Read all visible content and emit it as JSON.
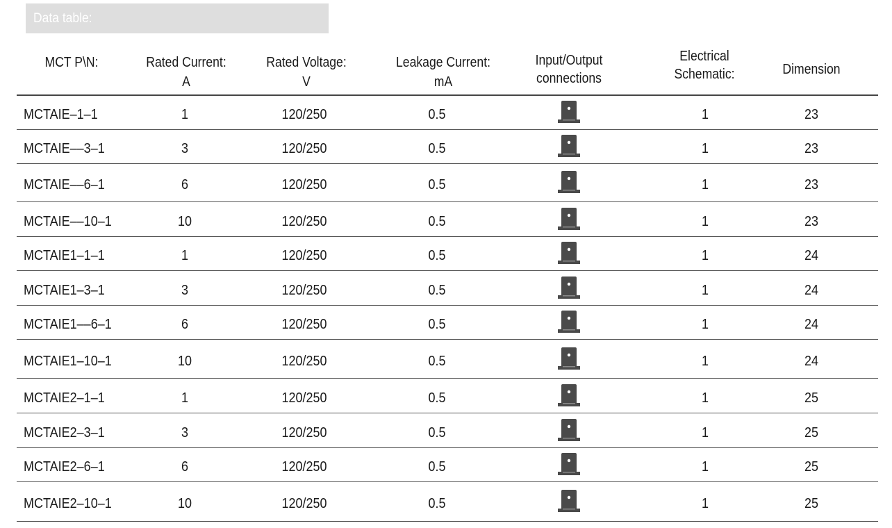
{
  "section_title": "Data table:",
  "columns": [
    {
      "line1": "MCT P\\N:",
      "line2": ""
    },
    {
      "line1": "Rated Current:",
      "line2": "A"
    },
    {
      "line1": "Rated Voltage:",
      "line2": "V"
    },
    {
      "line1": "Leakage  Current:",
      "line2": "mA"
    },
    {
      "line1": "Input/Output",
      "line2": "connections"
    },
    {
      "line1": "Electrical",
      "line2": "Schematic:"
    },
    {
      "line1": "Dimension",
      "line2": ""
    }
  ],
  "rows": [
    {
      "pn": "MCTAIE‒1‒1",
      "current": "1",
      "voltage": "120/250",
      "leakage": "0.5",
      "connection_icon": "terminal-block-icon",
      "schematic": "1",
      "dimension": "23"
    },
    {
      "pn": "MCTAIE‒‒3‒1",
      "current": "3",
      "voltage": "120/250",
      "leakage": "0.5",
      "connection_icon": "terminal-block-icon",
      "schematic": "1",
      "dimension": "23"
    },
    {
      "pn": "MCTAIE‒‒6‒1",
      "current": "6",
      "voltage": "120/250",
      "leakage": "0.5",
      "connection_icon": "terminal-block-icon",
      "schematic": "1",
      "dimension": "23"
    },
    {
      "pn": "MCTAIE‒‒10‒1",
      "current": "10",
      "voltage": "120/250",
      "leakage": "0.5",
      "connection_icon": "terminal-block-icon",
      "schematic": "1",
      "dimension": "23"
    },
    {
      "pn": "MCTAIE1‒1‒1",
      "current": "1",
      "voltage": "120/250",
      "leakage": "0.5",
      "connection_icon": "terminal-block-icon",
      "schematic": "1",
      "dimension": "24"
    },
    {
      "pn": "MCTAIE1‒3‒1",
      "current": "3",
      "voltage": "120/250",
      "leakage": "0.5",
      "connection_icon": "terminal-block-icon",
      "schematic": "1",
      "dimension": "24"
    },
    {
      "pn": "MCTAIE1‒‒6‒1",
      "current": "6",
      "voltage": "120/250",
      "leakage": "0.5",
      "connection_icon": "terminal-block-icon",
      "schematic": "1",
      "dimension": "24"
    },
    {
      "pn": "MCTAIE1‒10‒1",
      "current": "10",
      "voltage": "120/250",
      "leakage": "0.5",
      "connection_icon": "terminal-block-icon",
      "schematic": "1",
      "dimension": "24"
    },
    {
      "pn": "MCTAIE2‒1‒1",
      "current": "1",
      "voltage": "120/250",
      "leakage": "0.5",
      "connection_icon": "terminal-block-icon",
      "schematic": "1",
      "dimension": "25"
    },
    {
      "pn": "MCTAIE2‒3‒1",
      "current": "3",
      "voltage": "120/250",
      "leakage": "0.5",
      "connection_icon": "terminal-block-icon",
      "schematic": "1",
      "dimension": "25"
    },
    {
      "pn": "MCTAIE2‒6‒1",
      "current": "6",
      "voltage": "120/250",
      "leakage": "0.5",
      "connection_icon": "terminal-block-icon",
      "schematic": "1",
      "dimension": "25"
    },
    {
      "pn": "MCTAIE2‒10‒1",
      "current": "10",
      "voltage": "120/250",
      "leakage": "0.5",
      "connection_icon": "terminal-block-icon",
      "schematic": "1",
      "dimension": "25"
    }
  ],
  "colors": {
    "title_bar": "#dedede",
    "icon_fill": "#4a4a4a",
    "rule": "#555555"
  }
}
